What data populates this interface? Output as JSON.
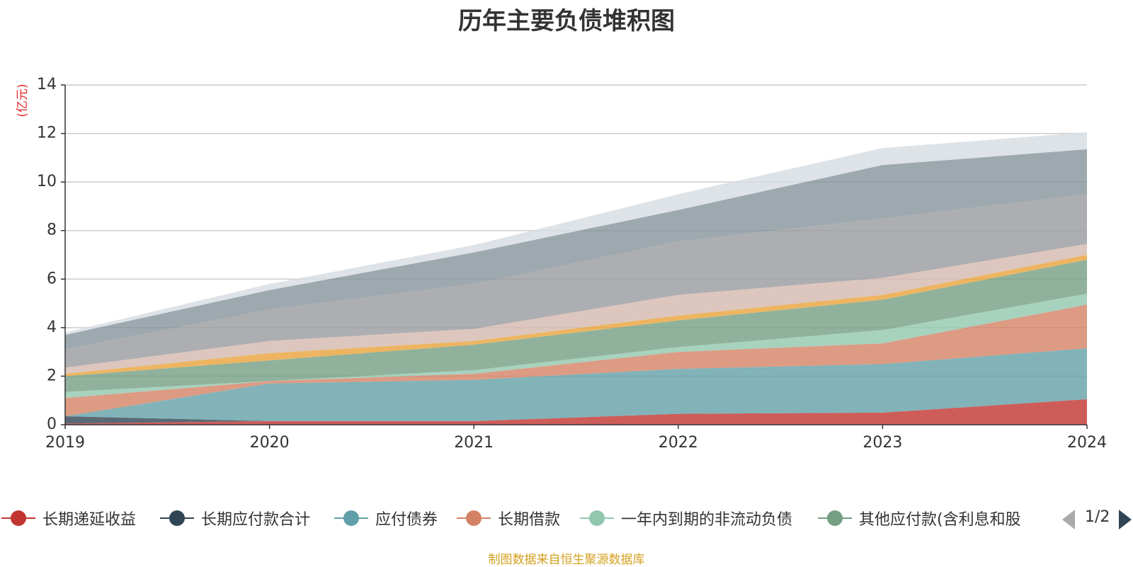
{
  "chart_data": {
    "type": "area",
    "stacked": true,
    "title": "历年主要负债堆积图",
    "ylabel": "(亿元)",
    "ylim": [
      0,
      14
    ],
    "yticks": [
      0,
      2,
      4,
      6,
      8,
      10,
      12,
      14
    ],
    "categories": [
      "2019",
      "2020",
      "2021",
      "2022",
      "2023",
      "2024"
    ],
    "grid": true,
    "source_note": "制图数据来自恒生聚源数据库",
    "series": [
      {
        "name": "长期递延收益",
        "color": "#c23531",
        "values": [
          0.05,
          0.15,
          0.15,
          0.45,
          0.5,
          1.05
        ]
      },
      {
        "name": "长期应付款合计",
        "color": "#2f4554",
        "values": [
          0.3,
          0.0,
          0.0,
          0.0,
          0.0,
          0.0
        ]
      },
      {
        "name": "应付债券",
        "color": "#61a0a8",
        "values": [
          0.0,
          1.55,
          1.7,
          1.85,
          2.0,
          2.1
        ]
      },
      {
        "name": "长期借款",
        "color": "#d48265",
        "values": [
          0.75,
          0.1,
          0.25,
          0.7,
          0.85,
          1.8
        ]
      },
      {
        "name": "一年内到期的非流动负债",
        "color": "#91c7ae",
        "values": [
          0.25,
          0.0,
          0.15,
          0.2,
          0.55,
          0.45
        ]
      },
      {
        "name": "其他应付款(含利息和股利)",
        "color": "#749f83",
        "values": [
          0.65,
          0.85,
          1.05,
          1.1,
          1.25,
          1.4
        ]
      },
      {
        "name": "",
        "color": "#e8a33a",
        "values": [
          0.1,
          0.3,
          0.15,
          0.2,
          0.2,
          0.2
        ]
      },
      {
        "name": "",
        "color": "#d5b8ae",
        "values": [
          0.25,
          0.5,
          0.5,
          0.85,
          0.7,
          0.45
        ]
      },
      {
        "name": "",
        "color": "#999a9e",
        "values": [
          0.75,
          1.3,
          1.85,
          2.2,
          2.45,
          2.05
        ]
      },
      {
        "name": "",
        "color": "#84939a",
        "values": [
          0.6,
          0.8,
          1.3,
          1.3,
          2.2,
          1.85
        ]
      },
      {
        "name": "",
        "color": "#d6dce2",
        "values": [
          0.1,
          0.25,
          0.3,
          0.65,
          0.7,
          0.7
        ]
      }
    ]
  },
  "legend": {
    "items": [
      {
        "label": "长期递延收益",
        "color": "#c23531"
      },
      {
        "label": "长期应付款合计",
        "color": "#2f4554"
      },
      {
        "label": "应付债券",
        "color": "#61a0a8"
      },
      {
        "label": "长期借款",
        "color": "#d48265"
      },
      {
        "label": "一年内到期的非流动负债",
        "color": "#91c7ae"
      },
      {
        "label": "其他应付款(含利息和股",
        "color": "#749f83"
      }
    ],
    "page": "1/2"
  }
}
